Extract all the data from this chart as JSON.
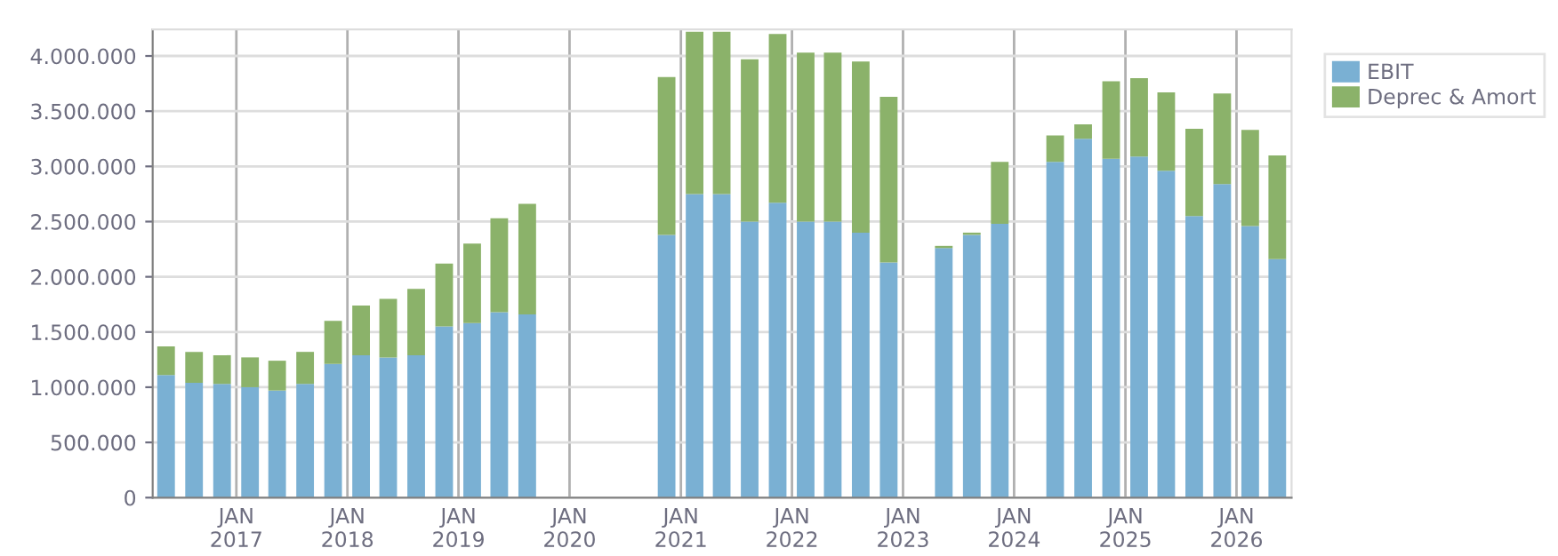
{
  "chart_data": {
    "type": "bar",
    "stacked": true,
    "x": [
      "2016-05-15",
      "2016-08-15",
      "2016-11-15",
      "2017-02-15",
      "2017-05-15",
      "2017-08-15",
      "2017-11-15",
      "2018-02-15",
      "2018-05-15",
      "2018-08-15",
      "2018-11-15",
      "2019-02-15",
      "2019-05-15",
      "2019-08-15",
      "2020-11-15",
      "2021-02-15",
      "2021-05-15",
      "2021-08-15",
      "2021-11-15",
      "2022-02-15",
      "2022-05-15",
      "2022-08-15",
      "2022-11-15",
      "2023-05-15",
      "2023-08-15",
      "2023-11-15",
      "2024-05-15",
      "2024-08-15",
      "2024-11-15",
      "2025-02-15",
      "2025-05-15",
      "2025-08-15",
      "2025-11-15",
      "2026-02-15",
      "2026-05-15"
    ],
    "series": [
      {
        "name": "EBIT",
        "color": "#7ab0d3",
        "values": [
          1110000,
          1040000,
          1030000,
          1000000,
          970000,
          1030000,
          1210000,
          1290000,
          1270000,
          1290000,
          1550000,
          1580000,
          1680000,
          1660000,
          2380000,
          2750000,
          2750000,
          2500000,
          2670000,
          2500000,
          2500000,
          2400000,
          2130000,
          2260000,
          2380000,
          2480000,
          3040000,
          3250000,
          3070000,
          3090000,
          2960000,
          2550000,
          2840000,
          2460000,
          2160000
        ]
      },
      {
        "name": "Deprec & Amort",
        "color": "#8bb26a",
        "values": [
          260000,
          280000,
          260000,
          270000,
          270000,
          290000,
          390000,
          450000,
          530000,
          600000,
          570000,
          720000,
          850000,
          1000000,
          1430000,
          1470000,
          1470000,
          1470000,
          1530000,
          1530000,
          1530000,
          1550000,
          1500000,
          20000,
          20000,
          560000,
          240000,
          130000,
          700000,
          710000,
          710000,
          790000,
          820000,
          870000,
          940000
        ]
      }
    ],
    "xlim": [
      "2016-04-01",
      "2026-07-01"
    ],
    "xticks": [
      {
        "value": "2017-01-01",
        "label": "JAN\n2017"
      },
      {
        "value": "2018-01-01",
        "label": "JAN\n2018"
      },
      {
        "value": "2019-01-01",
        "label": "JAN\n2019"
      },
      {
        "value": "2020-01-01",
        "label": "JAN\n2020"
      },
      {
        "value": "2021-01-01",
        "label": "JAN\n2021"
      },
      {
        "value": "2022-01-01",
        "label": "JAN\n2022"
      },
      {
        "value": "2023-01-01",
        "label": "JAN\n2023"
      },
      {
        "value": "2024-01-01",
        "label": "JAN\n2024"
      },
      {
        "value": "2025-01-01",
        "label": "JAN\n2025"
      },
      {
        "value": "2026-01-01",
        "label": "JAN\n2026"
      }
    ],
    "ylim": [
      0,
      4240000
    ],
    "yticks": [
      0,
      {
        "value": 500000,
        "label": "500.000"
      },
      {
        "value": 1000000,
        "label": "1.000.000"
      },
      {
        "value": 1500000,
        "label": "1.500.000"
      },
      {
        "value": 2000000,
        "label": "2.000.000"
      },
      {
        "value": 2500000,
        "label": "2.500.000"
      },
      {
        "value": 3000000,
        "label": "3.000.000"
      },
      {
        "value": 3500000,
        "label": "3.500.000"
      },
      {
        "value": 4000000,
        "label": "4.000.000"
      }
    ],
    "grid": true,
    "legend": "top right"
  }
}
